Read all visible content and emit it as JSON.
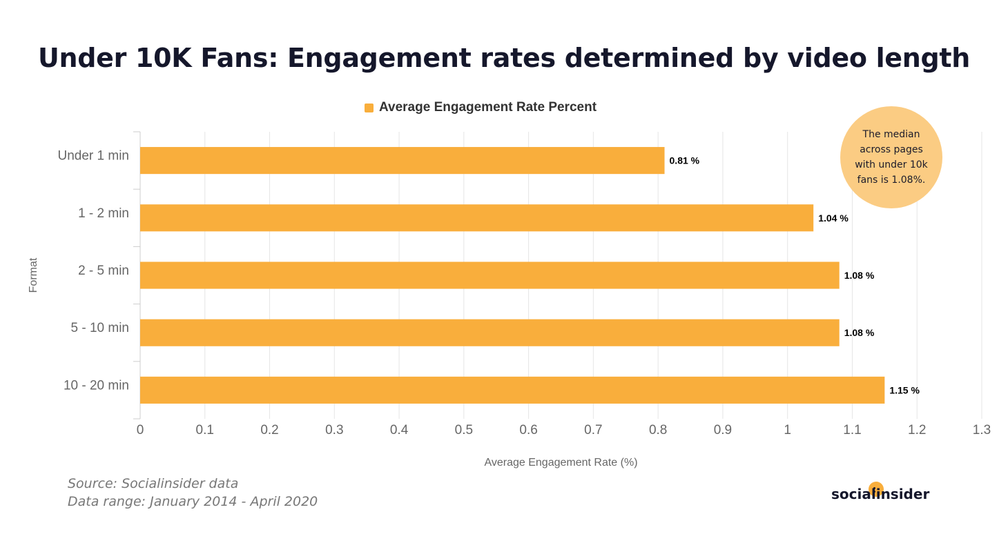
{
  "chart_data": {
    "type": "bar",
    "orientation": "horizontal",
    "title": "Under 10K Fans: Engagement rates determined by video length",
    "categories": [
      "Under 1 min",
      "1 - 2 min",
      "2 - 5 min",
      "5 - 10 min",
      "10 - 20 min"
    ],
    "series": [
      {
        "name": "Average Engagement Rate Percent",
        "values": [
          0.81,
          1.04,
          1.08,
          1.08,
          1.15
        ],
        "data_labels": [
          "0.81 %",
          "1.04 %",
          "1.08 %",
          "1.08 %",
          "1.15 %"
        ],
        "color": "#f9ae3c"
      }
    ],
    "xlabel": "Average Engagement Rate (%)",
    "ylabel": "Format",
    "xlim": [
      0,
      1.3
    ],
    "x_ticks": [
      "0",
      "0.1",
      "0.2",
      "0.3",
      "0.4",
      "0.5",
      "0.6",
      "0.7",
      "0.8",
      "0.9",
      "1",
      "1.1",
      "1.2",
      "1.3"
    ],
    "grid": true,
    "legend_position": "top-center",
    "annotation": "The median across pages with under 10k fans is 1.08%.",
    "annotation_color": "#fbcc83"
  },
  "footer": {
    "source": "Source: Socialinsider data",
    "range": "Data range: January 2014 - April 2020"
  },
  "brand": {
    "name": "socialinsider",
    "accent": "#f9ae3c"
  }
}
